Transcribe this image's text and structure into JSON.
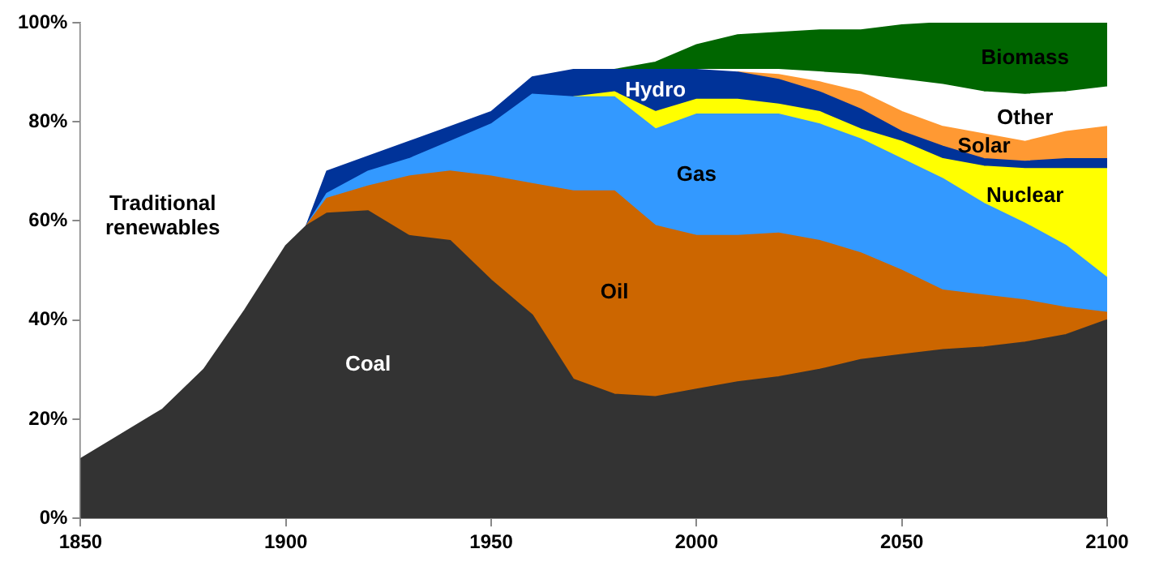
{
  "chart_data": {
    "type": "area",
    "stacked": true,
    "x": [
      1850,
      1860,
      1870,
      1880,
      1890,
      1900,
      1905,
      1910,
      1920,
      1930,
      1940,
      1950,
      1960,
      1970,
      1980,
      1990,
      2000,
      2010,
      2020,
      2030,
      2040,
      2050,
      2060,
      2070,
      2080,
      2090,
      2100
    ],
    "xlim": [
      1850,
      2100
    ],
    "xticks": [
      1850,
      1900,
      1950,
      2000,
      2050,
      2100
    ],
    "ylim": [
      0,
      100
    ],
    "yticks": [
      {
        "value": 0,
        "label": "0%"
      },
      {
        "value": 20,
        "label": "20%"
      },
      {
        "value": 40,
        "label": "40%"
      },
      {
        "value": 60,
        "label": "60%"
      },
      {
        "value": 80,
        "label": "80%"
      },
      {
        "value": 100,
        "label": "100%"
      }
    ],
    "legend": false,
    "series": [
      {
        "name": "Coal",
        "color": "#333333",
        "values": [
          12,
          17,
          22,
          30,
          42,
          55,
          59,
          61.5,
          62,
          57,
          56,
          48,
          41,
          28,
          25,
          24.5,
          26,
          27.5,
          28.5,
          30,
          32,
          33,
          34,
          34.5,
          35.5,
          37,
          40
        ]
      },
      {
        "name": "Oil",
        "color": "#cc6600",
        "values": [
          null,
          null,
          null,
          null,
          null,
          null,
          0,
          3,
          5,
          12,
          14,
          21,
          26.5,
          38,
          41,
          34.5,
          31,
          29.5,
          29,
          26,
          21.5,
          17,
          12,
          10.5,
          8.5,
          5.5,
          1.5
        ]
      },
      {
        "name": "Gas",
        "color": "#3399ff",
        "values": [
          null,
          null,
          null,
          null,
          null,
          null,
          0,
          1,
          3,
          3.5,
          6,
          10.5,
          18,
          19,
          19,
          19.5,
          24.5,
          24.5,
          24,
          23.5,
          23,
          22.5,
          22.5,
          18.5,
          15.5,
          12.5,
          7
        ]
      },
      {
        "name": "Nuclear",
        "color": "#ffff00",
        "values": [
          null,
          null,
          null,
          null,
          null,
          null,
          null,
          null,
          null,
          null,
          null,
          null,
          null,
          0,
          1,
          3.5,
          3,
          3,
          2,
          2.5,
          2,
          3.5,
          4,
          7.5,
          11,
          15.5,
          22
        ]
      },
      {
        "name": "Hydro",
        "color": "#003399",
        "values": [
          null,
          null,
          null,
          null,
          null,
          null,
          0,
          4.5,
          3,
          3.5,
          3,
          2.5,
          3.5,
          5.5,
          4.5,
          8.5,
          6,
          5.5,
          5,
          4,
          4,
          2,
          2.5,
          1.5,
          1.5,
          2,
          2
        ]
      },
      {
        "name": "Solar",
        "color": "#ff9933",
        "values": [
          null,
          null,
          null,
          null,
          null,
          null,
          null,
          null,
          null,
          null,
          null,
          null,
          null,
          null,
          null,
          null,
          null,
          0,
          1,
          2,
          3.5,
          4,
          4,
          5,
          4,
          5.5,
          6.5
        ]
      },
      {
        "name": "Other",
        "color": "#ffffff",
        "values": [
          null,
          null,
          null,
          null,
          null,
          null,
          null,
          null,
          null,
          null,
          null,
          null,
          null,
          null,
          null,
          null,
          0,
          0.5,
          1,
          2,
          3.5,
          6.5,
          8.5,
          8.5,
          9.5,
          8,
          8
        ]
      },
      {
        "name": "Biomass",
        "color": "#006600",
        "values": [
          null,
          null,
          null,
          null,
          null,
          null,
          null,
          null,
          null,
          null,
          null,
          null,
          null,
          null,
          0,
          1.5,
          5,
          7,
          7.5,
          8.5,
          9,
          11,
          12.5,
          14,
          14.5,
          14,
          13
        ]
      },
      {
        "name": "Traditional renewables",
        "color": "#ffffff",
        "values": [
          88,
          83,
          78,
          70,
          58,
          45,
          41,
          30,
          27,
          24,
          21,
          18,
          11,
          9.5,
          9.5,
          8,
          4.5,
          2.5,
          2,
          1.5,
          1.5,
          0.5,
          0,
          null,
          null,
          null,
          null
        ]
      }
    ]
  }
}
